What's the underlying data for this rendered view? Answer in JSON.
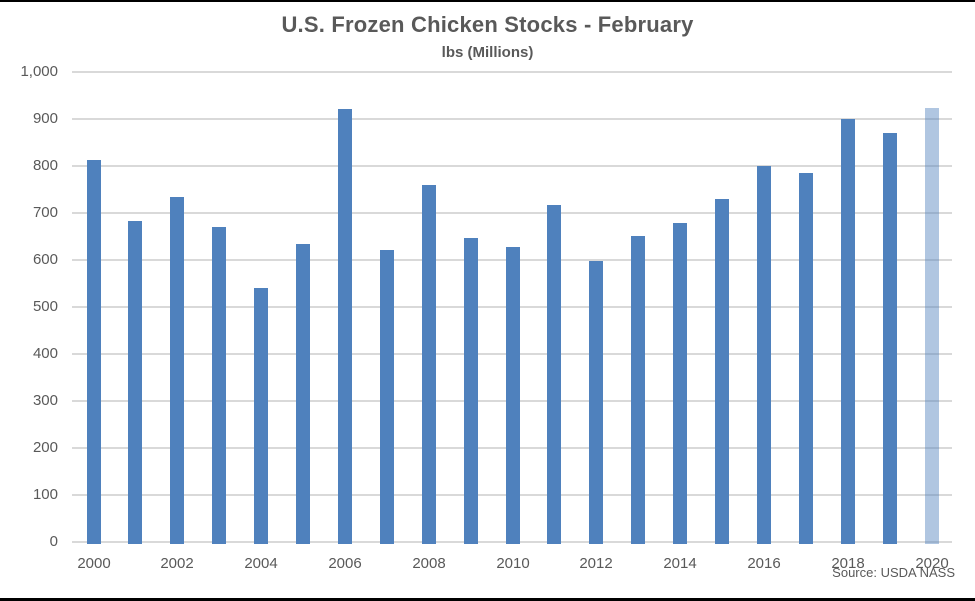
{
  "page": {
    "title": "U.S. Frozen Chicken Stocks - February",
    "subtitle": "lbs (Millions)",
    "source": "Source: USDA NASS"
  },
  "colors": {
    "bar": "#4f81bd",
    "bar_highlight": "rgba(79,129,189,0.45)",
    "gridline": "#d9d9d9",
    "axis_text": "#595959",
    "border": "#000000"
  },
  "chart_data": {
    "type": "bar",
    "title": "U.S. Frozen Chicken Stocks - February",
    "subtitle": "lbs (Millions)",
    "ylabel": "lbs (Millions)",
    "xlabel": "",
    "categories": [
      2000,
      2001,
      2002,
      2003,
      2004,
      2005,
      2006,
      2007,
      2008,
      2009,
      2010,
      2011,
      2012,
      2013,
      2014,
      2015,
      2016,
      2017,
      2018,
      2019,
      2020
    ],
    "values": [
      813,
      682,
      735,
      671,
      541,
      634,
      922,
      622,
      760,
      647,
      628,
      716,
      598,
      651,
      679,
      730,
      799,
      785,
      900,
      870,
      924
    ],
    "highlighted_category": 2020,
    "ylim": [
      0,
      1000
    ],
    "ytick_interval": 100,
    "ytick_labels": [
      "0",
      "100",
      "200",
      "300",
      "400",
      "500",
      "600",
      "700",
      "800",
      "900",
      "1,000"
    ],
    "xtick_labels_shown": [
      "2000",
      "2002",
      "2004",
      "2006",
      "2008",
      "2010",
      "2012",
      "2014",
      "2016",
      "2018",
      "2020"
    ],
    "grid": true,
    "legend": false,
    "source": "Source: USDA NASS"
  }
}
